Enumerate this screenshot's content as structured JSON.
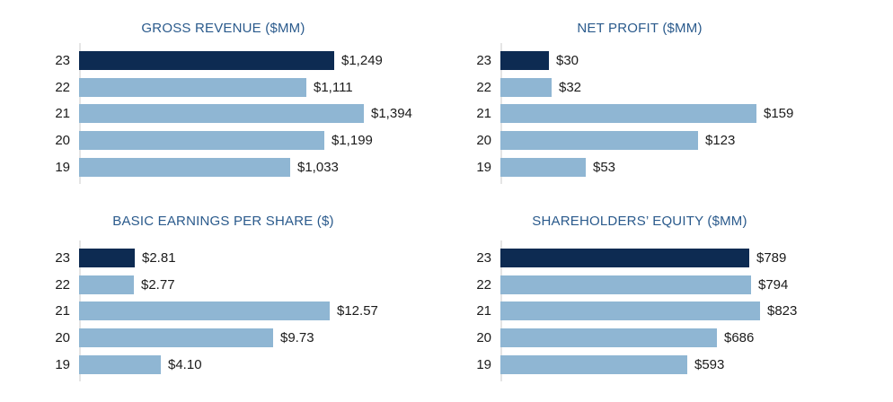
{
  "colors": {
    "background": "#ffffff",
    "title": "#2a5a8c",
    "bar": "#8fb6d3",
    "highlight_bar": "#0d2b52",
    "text": "#1b1b1b",
    "axis_line": "#e5e5e5"
  },
  "chart_data": [
    {
      "type": "bar",
      "orientation": "horizontal",
      "title": "GROSS REVENUE ($MM)",
      "categories": [
        "23",
        "22",
        "21",
        "20",
        "19"
      ],
      "values": [
        1249,
        1111,
        1394,
        1199,
        1033
      ],
      "value_labels": [
        "$1,249",
        "$1,111",
        "$1,394",
        "$1,199",
        "$1,033"
      ],
      "highlight_category": "23",
      "axis_range": [
        0,
        1394
      ],
      "grid": false,
      "legend": "none"
    },
    {
      "type": "bar",
      "orientation": "horizontal",
      "title": "NET PROFIT ($MM)",
      "categories": [
        "23",
        "22",
        "21",
        "20",
        "19"
      ],
      "values": [
        30,
        32,
        159,
        123,
        53
      ],
      "value_labels": [
        "$30",
        "$32",
        "$159",
        "$123",
        "$53"
      ],
      "highlight_category": "23",
      "axis_range": [
        0,
        159
      ],
      "grid": false,
      "legend": "none"
    },
    {
      "type": "bar",
      "orientation": "horizontal",
      "title": "BASIC EARNINGS PER SHARE ($)",
      "categories": [
        "23",
        "22",
        "21",
        "20",
        "19"
      ],
      "values": [
        2.81,
        2.77,
        12.57,
        9.73,
        4.1
      ],
      "value_labels": [
        "$2.81",
        "$2.77",
        "$12.57",
        "$9.73",
        "$4.10"
      ],
      "highlight_category": "23",
      "axis_range": [
        0,
        12.57
      ],
      "grid": false,
      "legend": "none"
    },
    {
      "type": "bar",
      "orientation": "horizontal",
      "title": "SHAREHOLDERS’ EQUITY ($MM)",
      "categories": [
        "23",
        "22",
        "21",
        "20",
        "19"
      ],
      "values": [
        789,
        794,
        823,
        686,
        593
      ],
      "value_labels": [
        "$789",
        "$794",
        "$823",
        "$686",
        "$593"
      ],
      "highlight_category": "23",
      "axis_range": [
        0,
        823
      ],
      "grid": false,
      "legend": "none"
    }
  ]
}
